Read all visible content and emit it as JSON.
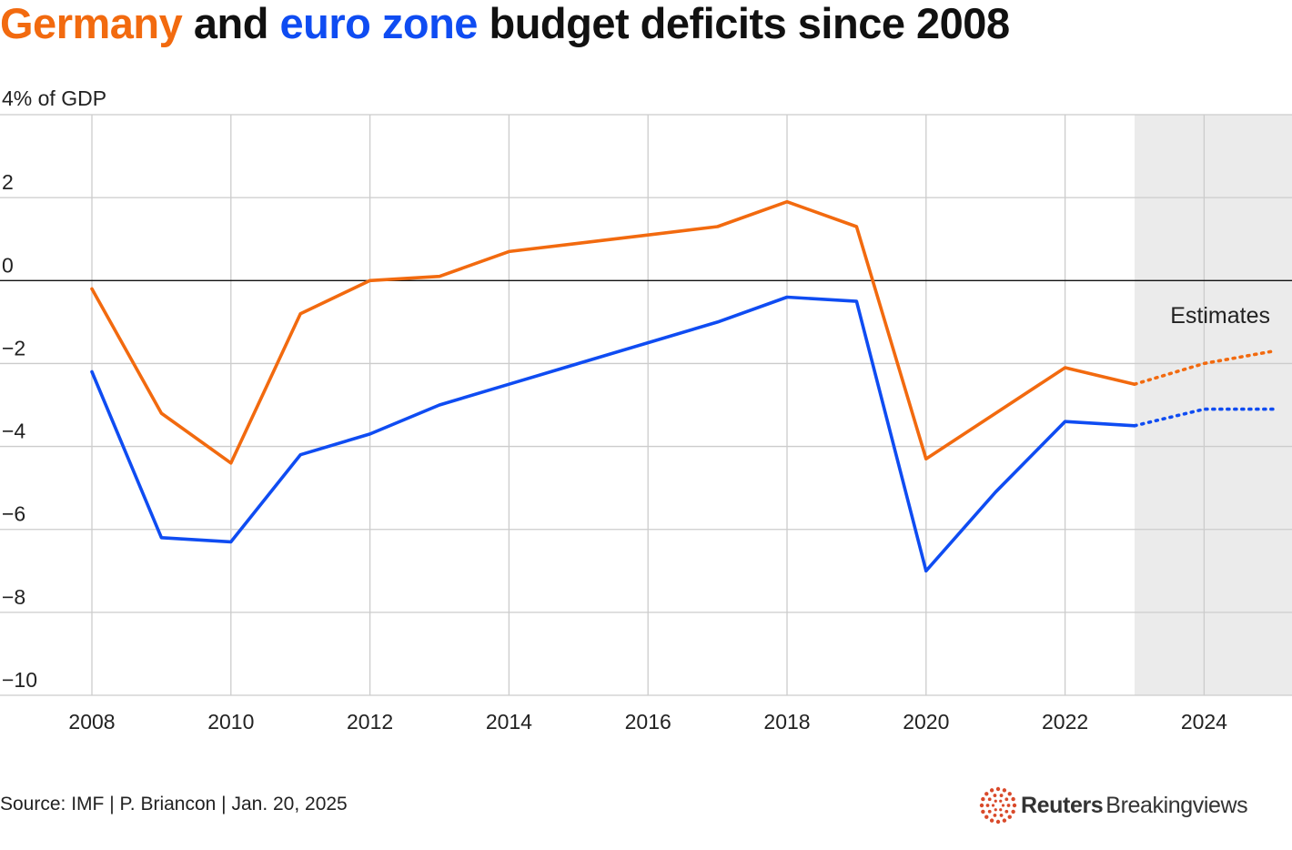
{
  "title": {
    "part1": "Germany",
    "part2": " and ",
    "part3": "euro zone",
    "part4": " budget deficits since 2008"
  },
  "colors": {
    "germany": "#F26A0F",
    "euro_zone": "#0F4CF2",
    "title_text": "#111111",
    "grid": "#CCCCCC",
    "zero_line": "#111111",
    "estimates_shade": "#EBEBEB",
    "brand": "#D94A2B"
  },
  "chart_data": {
    "type": "line",
    "ylabel": "4% of GDP",
    "xlabel": "",
    "ylim": [
      -10,
      4
    ],
    "xlim": [
      2008,
      2025
    ],
    "yticks": [
      -10,
      -8,
      -6,
      -4,
      -2,
      0,
      2,
      4
    ],
    "ytick_labels": [
      "−10",
      "−8",
      "−6",
      "−4",
      "−2",
      "0",
      "2",
      ""
    ],
    "xticks": [
      2008,
      2010,
      2012,
      2014,
      2016,
      2018,
      2020,
      2022,
      2024
    ],
    "xtick_labels": [
      "2008",
      "2010",
      "2012",
      "2014",
      "2016",
      "2018",
      "2020",
      "2022",
      "2024"
    ],
    "grid": true,
    "estimates": {
      "label": "Estimates",
      "from": 2023,
      "to": 2025
    },
    "series": [
      {
        "name": "Germany",
        "color": "#F26A0F",
        "x": [
          2008,
          2009,
          2010,
          2011,
          2012,
          2013,
          2014,
          2015,
          2016,
          2017,
          2018,
          2019,
          2020,
          2021,
          2022,
          2023
        ],
        "values": [
          -0.2,
          -3.2,
          -4.4,
          -0.8,
          0.0,
          0.1,
          0.7,
          0.9,
          1.1,
          1.3,
          1.9,
          1.3,
          -4.3,
          -3.2,
          -2.1,
          -2.5
        ],
        "estimate_x": [
          2023,
          2024,
          2025
        ],
        "estimate_values": [
          -2.5,
          -2.0,
          -1.7
        ]
      },
      {
        "name": "Euro zone",
        "color": "#0F4CF2",
        "x": [
          2008,
          2009,
          2010,
          2011,
          2012,
          2013,
          2014,
          2015,
          2016,
          2017,
          2018,
          2019,
          2020,
          2021,
          2022,
          2023
        ],
        "values": [
          -2.2,
          -6.2,
          -6.3,
          -4.2,
          -3.7,
          -3.0,
          -2.5,
          -2.0,
          -1.5,
          -1.0,
          -0.4,
          -0.5,
          -7.0,
          -5.1,
          -3.4,
          -3.5
        ],
        "estimate_x": [
          2023,
          2024,
          2025
        ],
        "estimate_values": [
          -3.5,
          -3.1,
          -3.1
        ]
      }
    ]
  },
  "footer": {
    "source": "Source: IMF | P. Briancon | Jan. 20, 2025",
    "brand_bold": "Reuters",
    "brand_regular": "Breakingviews"
  }
}
